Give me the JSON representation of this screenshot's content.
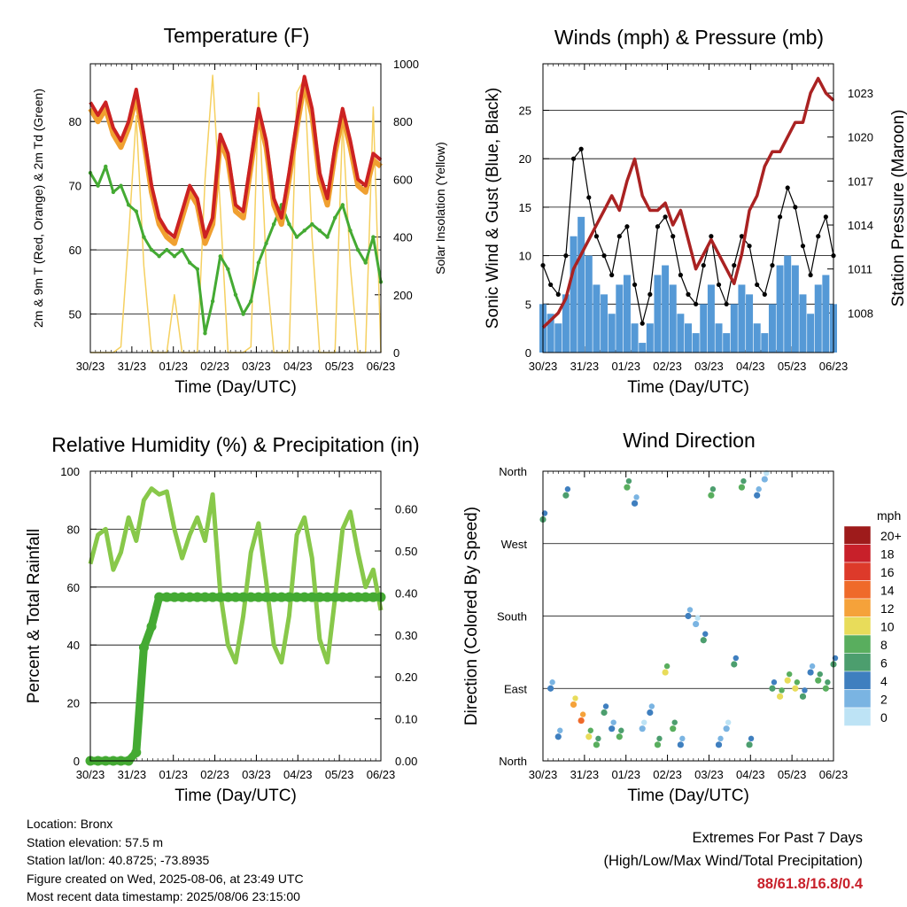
{
  "chart_data": [
    {
      "type": "line",
      "title": "Temperature (F)",
      "xlabel": "Time (Day/UTC)",
      "ylabel": "2m & 9m T (Red, Orange) & 2m Td (Green)",
      "ylabel_right": "Solar Insolation (Yellow)",
      "x_ticks": [
        "30/23",
        "31/23",
        "01/23",
        "02/23",
        "03/23",
        "04/23",
        "05/23",
        "06/23"
      ],
      "y_ticks": [
        "50",
        "60",
        "70",
        "80"
      ],
      "y2_ticks": [
        "0",
        "200",
        "400",
        "600",
        "800",
        "1000"
      ],
      "ylim": [
        44,
        89
      ],
      "y2lim": [
        0,
        1000
      ],
      "grid": true,
      "series": [
        {
          "color": "#cc2222",
          "values": [
            83,
            81,
            83,
            79,
            77,
            80,
            85,
            78,
            70,
            65,
            63,
            62,
            66,
            70,
            68,
            62,
            65,
            78,
            75,
            67,
            66,
            74,
            82,
            77,
            68,
            65,
            72,
            80,
            87,
            82,
            72,
            68,
            76,
            82,
            77,
            71,
            70,
            75,
            74
          ]
        },
        {
          "color": "#f0a030",
          "values": [
            82,
            80,
            82,
            78,
            76,
            79,
            84,
            77,
            69,
            64,
            62,
            61,
            65,
            69,
            67,
            61,
            64,
            77,
            74,
            66,
            65,
            73,
            81,
            76,
            67,
            64,
            71,
            79,
            86,
            81,
            71,
            67,
            75,
            81,
            76,
            70,
            69,
            74,
            73
          ]
        },
        {
          "color": "#44aa33",
          "values": [
            72,
            70,
            73,
            69,
            70,
            67,
            66,
            62,
            60,
            59,
            60,
            59,
            60,
            58,
            57,
            47,
            52,
            59,
            57,
            53,
            50,
            52,
            58,
            61,
            64,
            67,
            64,
            62,
            63,
            64,
            63,
            62,
            65,
            67,
            63,
            60,
            58,
            62,
            55
          ]
        },
        {
          "color": "#f5d060",
          "values": [
            0,
            0,
            0,
            0,
            20,
            400,
            820,
            300,
            0,
            0,
            0,
            200,
            0,
            0,
            0,
            600,
            960,
            500,
            0,
            0,
            0,
            20,
            900,
            300,
            0,
            0,
            0,
            900,
            950,
            400,
            0,
            0,
            0,
            800,
            300,
            0,
            0,
            850,
            0
          ]
        }
      ]
    },
    {
      "type": "scatter",
      "title": "Winds (mph) & Pressure (mb)",
      "xlabel": "Time (Day/UTC)",
      "ylabel": "Sonic Wind & Gust (Blue, Black)",
      "ylabel_right": "Station Pressure (Maroon)",
      "x_ticks": [
        "30/23",
        "31/23",
        "01/23",
        "02/23",
        "03/23",
        "04/23",
        "05/23",
        "06/23"
      ],
      "y_ticks": [
        "0",
        "5",
        "10",
        "15",
        "20",
        "25"
      ],
      "y2_ticks": [
        "1008",
        "1011",
        "1014",
        "1017",
        "1020",
        "1023"
      ],
      "ylim": [
        0,
        29.8
      ],
      "y2lim": [
        1005.3,
        1025
      ],
      "grid": true,
      "series": [
        {
          "color": "#000000",
          "values": [
            9,
            7,
            6,
            10,
            20,
            21,
            16,
            12,
            10,
            8,
            12,
            13,
            7,
            3,
            6,
            13,
            14,
            12,
            8,
            6,
            5,
            9,
            12,
            7,
            5,
            9,
            12,
            11,
            7,
            6,
            9,
            14,
            17,
            15,
            11,
            8,
            12,
            14,
            10
          ]
        },
        {
          "color": "#5599d6",
          "values": [
            5,
            4,
            3,
            6,
            12,
            14,
            10,
            7,
            6,
            4,
            7,
            8,
            3,
            1,
            3,
            8,
            9,
            7,
            4,
            3,
            2,
            5,
            7,
            3,
            2,
            5,
            7,
            6,
            3,
            2,
            5,
            9,
            10,
            9,
            6,
            4,
            7,
            8,
            5
          ]
        },
        {
          "color": "#aa2222",
          "values": [
            1007,
            1007.5,
            1008,
            1009,
            1011,
            1012,
            1013,
            1014,
            1015,
            1016,
            1015,
            1017,
            1018.5,
            1016,
            1015,
            1015,
            1015.5,
            1014,
            1015,
            1013,
            1011,
            1012,
            1013,
            1012,
            1011,
            1010,
            1012,
            1015,
            1016,
            1018,
            1019,
            1019,
            1020,
            1021,
            1021,
            1023,
            1024,
            1023,
            1022.5
          ]
        }
      ]
    },
    {
      "type": "line",
      "title": "Relative Humidity (%) & Precipitation (in)",
      "xlabel": "Time (Day/UTC)",
      "ylabel": "Percent & Total Rainfall",
      "x_ticks": [
        "30/23",
        "31/23",
        "01/23",
        "02/23",
        "03/23",
        "04/23",
        "05/23",
        "06/23"
      ],
      "y_ticks": [
        "0",
        "20",
        "40",
        "60",
        "80",
        "100"
      ],
      "y2_ticks": [
        "0.00",
        "0.10",
        "0.20",
        "0.30",
        "0.40",
        "0.50",
        "0.60"
      ],
      "ylim": [
        0,
        100
      ],
      "y2lim": [
        0,
        0.69
      ],
      "grid": true,
      "series": [
        {
          "color": "#88c84a",
          "values": [
            68,
            78,
            80,
            66,
            72,
            84,
            76,
            90,
            94,
            92,
            93,
            80,
            70,
            78,
            84,
            76,
            92,
            58,
            40,
            34,
            50,
            72,
            82,
            62,
            40,
            34,
            50,
            78,
            84,
            70,
            42,
            34,
            56,
            80,
            86,
            72,
            60,
            66,
            52
          ]
        },
        {
          "color": "#44aa33",
          "values": [
            0,
            0,
            0,
            0,
            0,
            0,
            0.02,
            0.27,
            0.32,
            0.39,
            0.39,
            0.39,
            0.39,
            0.39,
            0.39,
            0.39,
            0.39,
            0.39,
            0.39,
            0.39,
            0.39,
            0.39,
            0.39,
            0.39,
            0.39,
            0.39,
            0.39,
            0.39,
            0.39,
            0.39,
            0.39,
            0.39,
            0.39,
            0.39,
            0.39,
            0.39,
            0.39,
            0.39,
            0.39
          ]
        }
      ]
    },
    {
      "type": "scatter",
      "title": "Wind Direction",
      "xlabel": "Time (Day/UTC)",
      "ylabel": "Direction (Colored By Speed)",
      "x_ticks": [
        "30/23",
        "31/23",
        "01/23",
        "02/23",
        "03/23",
        "04/23",
        "05/23",
        "06/23"
      ],
      "y_ticks": [
        "North",
        "East",
        "South",
        "West",
        "North"
      ],
      "ylim": [
        0,
        360
      ],
      "grid": true,
      "legend_title": "mph",
      "legend_labels": [
        "20+",
        "18",
        "16",
        "14",
        "12",
        "10",
        "8",
        "6",
        "4",
        "2",
        "0"
      ],
      "legend_colors": [
        "#9e1b1b",
        "#c8202a",
        "#dd3a2a",
        "#ef6a2a",
        "#f5a23a",
        "#e8dc5a",
        "#59ae5e",
        "#4c9e6e",
        "#3f7fbf",
        "#7ab4e2",
        "#bde3f5"
      ],
      "series": [
        {
          "name": "direction",
          "values": [
            300,
            90,
            30,
            330,
            70,
            50,
            30,
            20,
            60,
            40,
            30,
            340,
            320,
            40,
            60,
            20,
            110,
            40,
            20,
            180,
            170,
            150,
            330,
            20,
            40,
            120,
            340,
            20,
            330,
            350,
            90,
            80,
            100,
            90,
            80,
            110,
            100,
            90,
            120
          ]
        }
      ]
    }
  ],
  "info": {
    "location": "Location: Bronx",
    "elevation": "Station elevation: 57.5 m",
    "latlon": "Station lat/lon: 40.8725; -73.8935",
    "created": "Figure created on Wed, 2025-08-06, at 23:49 UTC",
    "recent": "Most recent data timestamp: 2025/08/06 23:15:00"
  },
  "extremes": {
    "line1": "Extremes For Past 7 Days",
    "line2": "(High/Low/Max Wind/Total Precipitation)",
    "values": "88/61.8/16.8/0.4"
  }
}
